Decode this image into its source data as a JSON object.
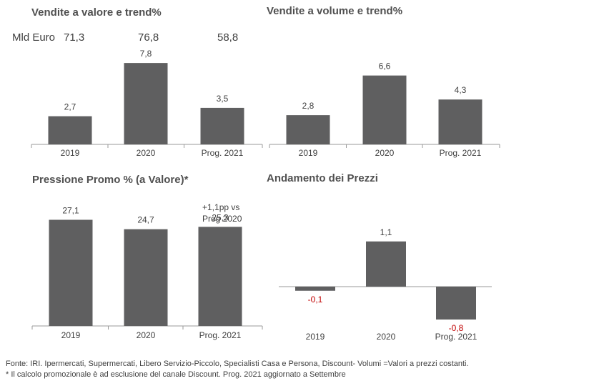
{
  "mld": {
    "label": "Mld Euro",
    "values": [
      "71,3",
      "76,8",
      "58,8"
    ]
  },
  "note": {
    "line1": "+1,1pp vs",
    "line2": "Prog 2020"
  },
  "footer": {
    "line1": "Fonte: IRI. Ipermercati, Supermercati, Libero Servizio-Piccolo, Specialisti Casa e Persona, Discount-  Volumi =Valori a prezzi  costanti.",
    "line2": "* Il calcolo promozionale è ad esclusione del canale Discount.   Prog. 2021 aggiornato a Settembre"
  },
  "colors": {
    "bar": "#5f5f60",
    "negative_label": "#c00000",
    "label": "#404040",
    "axis": "#9a9a9a"
  },
  "chart_data": [
    {
      "type": "bar",
      "title": "Vendite a valore e trend%",
      "categories": [
        "2019",
        "2020",
        "Prog. 2021"
      ],
      "values": [
        2.7,
        7.8,
        3.5
      ],
      "value_labels": [
        "2,7",
        "7,8",
        "3,5"
      ],
      "ylim": [
        0,
        9
      ]
    },
    {
      "type": "bar",
      "title": "Vendite a volume e trend%",
      "categories": [
        "2019",
        "2020",
        "Prog. 2021"
      ],
      "values": [
        2.8,
        6.6,
        4.3
      ],
      "value_labels": [
        "2,8",
        "6,6",
        "4,3"
      ],
      "ylim": [
        0,
        8
      ]
    },
    {
      "type": "bar",
      "title": "Pressione Promo % (a Valore)*",
      "categories": [
        "2019",
        "2020",
        "Prog. 2021"
      ],
      "values": [
        27.1,
        24.7,
        25.3
      ],
      "value_labels": [
        "27,1",
        "24,7",
        "25,3"
      ]
    },
    {
      "type": "bar",
      "title": "Andamento dei Prezzi",
      "categories": [
        "2019",
        "2020",
        "Prog. 2021"
      ],
      "values": [
        -0.1,
        1.1,
        -0.8
      ],
      "value_labels": [
        "-0,1",
        "1,1",
        "-0,8"
      ]
    }
  ]
}
